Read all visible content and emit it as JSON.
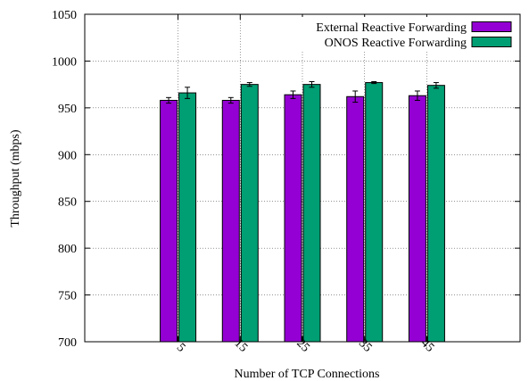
{
  "chart_data": {
    "type": "bar",
    "xlabel": "Number of TCP Connections",
    "ylabel": "Throughput (mbps)",
    "ylim": [
      700,
      1050
    ],
    "yticks": [
      700,
      750,
      800,
      850,
      900,
      950,
      1000,
      1050
    ],
    "categories": [
      "5",
      "15",
      "25",
      "35",
      "45"
    ],
    "grid": true,
    "legend_position": "top-right",
    "series": [
      {
        "name": "External Reactive Forwarding",
        "color": "#9400d3",
        "values": [
          958,
          958,
          964,
          962,
          963
        ],
        "errors": [
          3,
          3,
          4,
          6,
          5
        ]
      },
      {
        "name": "ONOS Reactive Forwarding",
        "color": "#009e73",
        "values": [
          966,
          975,
          975,
          977,
          974
        ],
        "errors": [
          6,
          2,
          3,
          1,
          3
        ]
      }
    ]
  }
}
